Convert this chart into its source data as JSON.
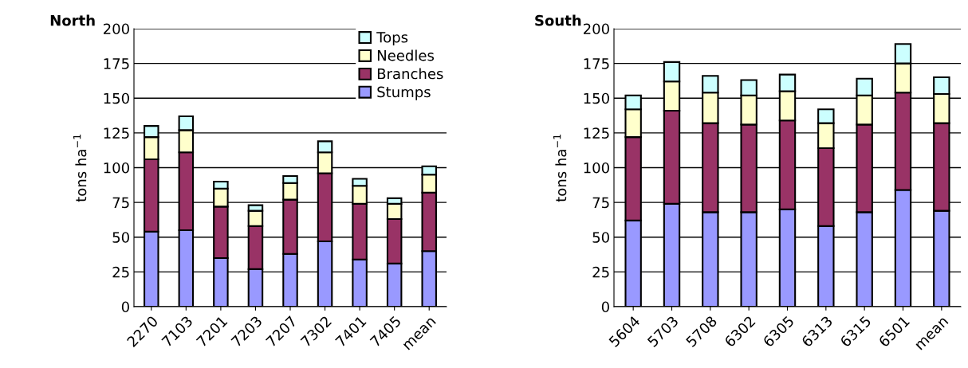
{
  "chart_data": [
    {
      "type": "bar",
      "title": "North",
      "ylabel": "tons ha$^{−1}$",
      "stacked": true,
      "categories": [
        "2270",
        "7103",
        "7201",
        "7203",
        "7207",
        "7302",
        "7401",
        "7405",
        "mean"
      ],
      "ylim": [
        0,
        200
      ],
      "yticks": [
        0,
        25,
        50,
        75,
        100,
        125,
        150,
        175,
        200
      ],
      "grid": "y",
      "legend": "top right",
      "series": [
        {
          "name": "Stumps",
          "color": "#9999ff",
          "values": [
            54,
            55,
            35,
            27,
            38,
            47,
            34,
            31,
            40
          ]
        },
        {
          "name": "Branches",
          "color": "#993366",
          "values": [
            52,
            56,
            37,
            31,
            39,
            49,
            40,
            32,
            42
          ]
        },
        {
          "name": "Needles",
          "color": "#ffffcc",
          "values": [
            16,
            16,
            13,
            11,
            12,
            15,
            13,
            11,
            13
          ]
        },
        {
          "name": "Tops",
          "color": "#ccffff",
          "values": [
            8,
            10,
            5,
            4,
            5,
            8,
            5,
            4,
            6
          ]
        }
      ]
    },
    {
      "type": "bar",
      "title": "South",
      "ylabel": "tons ha$^{−1}$",
      "stacked": true,
      "categories": [
        "5604",
        "5703",
        "5708",
        "6302",
        "6305",
        "6313",
        "6315",
        "6501",
        "mean"
      ],
      "ylim": [
        0,
        200
      ],
      "yticks": [
        0,
        25,
        50,
        75,
        100,
        125,
        150,
        175,
        200
      ],
      "grid": "y",
      "series": [
        {
          "color": "#9999ff",
          "values": [
            62,
            74,
            68,
            68,
            70,
            58,
            68,
            84,
            69
          ]
        },
        {
          "color": "#993366",
          "values": [
            60,
            67,
            64,
            63,
            64,
            56,
            63,
            70,
            63
          ]
        },
        {
          "color": "#ffffcc",
          "values": [
            20,
            21,
            22,
            21,
            21,
            18,
            21,
            21,
            21
          ]
        },
        {
          "color": "#ccffff",
          "values": [
            10,
            14,
            12,
            11,
            12,
            10,
            12,
            14,
            12
          ]
        }
      ]
    }
  ]
}
